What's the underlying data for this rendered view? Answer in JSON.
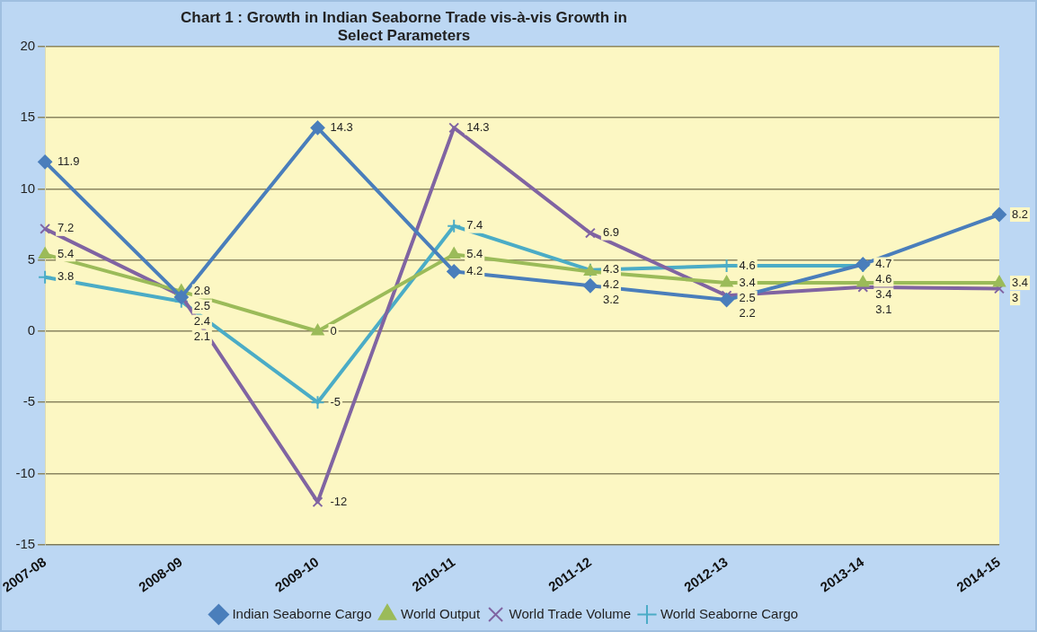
{
  "chart_data": {
    "type": "line",
    "title": "Chart 1 : Growth in Indian Seaborne Trade vis-à-vis Growth in Select Parameters",
    "categories": [
      "2007-08",
      "2008-09",
      "2009-10",
      "2010-11",
      "2011-12",
      "2012-13",
      "2013-14",
      "2014-15"
    ],
    "series": [
      {
        "name": "Indian Seaborne Cargo",
        "color": "#4a7ebb",
        "marker": "diamond",
        "values": [
          11.9,
          2.4,
          14.3,
          4.2,
          3.2,
          2.2,
          4.7,
          8.2
        ]
      },
      {
        "name": "World Output",
        "color": "#9bbb59",
        "marker": "triangle",
        "values": [
          5.4,
          2.8,
          0,
          5.4,
          4.2,
          3.4,
          3.4,
          3.4
        ]
      },
      {
        "name": "World Trade Volume",
        "color": "#8064a2",
        "marker": "cross",
        "values": [
          7.2,
          2.5,
          -12,
          14.3,
          6.9,
          2.5,
          3.1,
          3
        ]
      },
      {
        "name": "World Seaborne Cargo",
        "color": "#4bacc6",
        "marker": "cross",
        "values": [
          3.8,
          2.1,
          -5,
          7.4,
          4.3,
          4.6,
          4.6,
          null
        ]
      }
    ],
    "ylim": [
      -15,
      20
    ],
    "yticks": [
      -15,
      -10,
      -5,
      0,
      5,
      10,
      15,
      20
    ],
    "grid": "y",
    "legend": "bottom",
    "data_labels": true
  }
}
